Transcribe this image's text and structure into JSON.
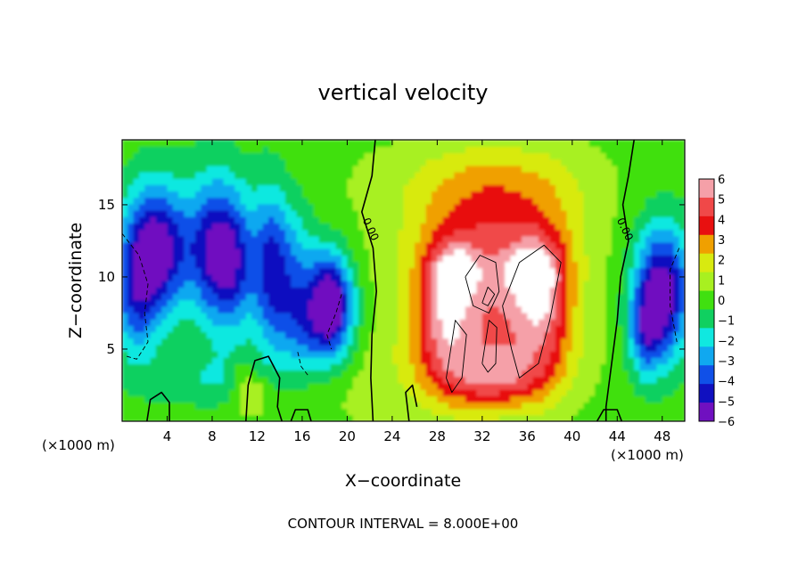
{
  "chart_data": {
    "type": "heatmap",
    "title": "vertical velocity",
    "xlabel": "X−coordinate",
    "ylabel": "Z−coordinate",
    "x_unit_left": "(×1000 m)",
    "x_unit_right": "(×1000 m)",
    "footer": "CONTOUR INTERVAL = 8.000E+00",
    "xlim": [
      0,
      50
    ],
    "ylim": [
      0,
      19.5
    ],
    "x_ticks": [
      {
        "value": 4,
        "label": "4"
      },
      {
        "value": 8,
        "label": "8"
      },
      {
        "value": 12,
        "label": "12"
      },
      {
        "value": 16,
        "label": "16"
      },
      {
        "value": 20,
        "label": "20"
      },
      {
        "value": 24,
        "label": "24"
      },
      {
        "value": 28,
        "label": "28"
      },
      {
        "value": 32,
        "label": "32"
      },
      {
        "value": 36,
        "label": "36"
      },
      {
        "value": 40,
        "label": "40"
      },
      {
        "value": 44,
        "label": "44"
      },
      {
        "value": 48,
        "label": "48"
      }
    ],
    "y_ticks": [
      {
        "value": 5,
        "label": "5"
      },
      {
        "value": 10,
        "label": "10"
      },
      {
        "value": 15,
        "label": "15"
      }
    ],
    "colorbar": {
      "levels": [
        {
          "value": 6,
          "label": "6",
          "color": "#f5a0a8"
        },
        {
          "value": 5,
          "label": "5",
          "color": "#f04848"
        },
        {
          "value": 4,
          "label": "4",
          "color": "#e81010"
        },
        {
          "value": 3,
          "label": "3",
          "color": "#f0a000"
        },
        {
          "value": 2,
          "label": "2",
          "color": "#d8ea10"
        },
        {
          "value": 1,
          "label": "1",
          "color": "#a8f020"
        },
        {
          "value": 0,
          "label": "0",
          "color": "#40e010"
        },
        {
          "value": -1,
          "label": "−1",
          "color": "#10d060"
        },
        {
          "value": -2,
          "label": "−2",
          "color": "#10e8e0"
        },
        {
          "value": -3,
          "label": "−3",
          "color": "#10a8f0"
        },
        {
          "value": -4,
          "label": "−4",
          "color": "#1050e8"
        },
        {
          "value": -5,
          "label": "−5",
          "color": "#1010c0"
        },
        {
          "value": -6,
          "label": "−6",
          "color": "#7010c0"
        }
      ]
    },
    "contour_labels": [
      {
        "text": "0.00",
        "x": 21.8,
        "y": 13.2
      },
      {
        "text": "0.00",
        "x": 44.4,
        "y": 13.2
      }
    ],
    "fields": [
      {
        "x": 25,
        "y": 3,
        "sx": 14,
        "sy": 4,
        "v": 0.8
      },
      {
        "x": 20,
        "y": 11,
        "sx": 6,
        "sy": 9,
        "v": 0.3
      },
      {
        "x": 33,
        "y": 17,
        "sx": 9,
        "sy": 3,
        "v": 1.8
      },
      {
        "x": 33,
        "y": 13,
        "sx": 7.5,
        "sy": 4,
        "v": 3.2
      },
      {
        "x": 33,
        "y": 7,
        "sx": 6.5,
        "sy": 5,
        "v": 4.5
      },
      {
        "x": 28.5,
        "y": 7,
        "sx": 2.5,
        "sy": 4.5,
        "v": 3
      },
      {
        "x": 37.5,
        "y": 8,
        "sx": 2.5,
        "sy": 5,
        "v": 3
      },
      {
        "x": 29.5,
        "y": 10.5,
        "sx": 2.5,
        "sy": 2,
        "v": 2.5
      },
      {
        "x": 36.5,
        "y": 10.5,
        "sx": 2.5,
        "sy": 2,
        "v": 2.5
      },
      {
        "x": 33,
        "y": 3,
        "sx": 4.5,
        "sy": 2,
        "v": 3
      },
      {
        "x": 3,
        "y": 12,
        "sx": 3,
        "sy": 4.5,
        "v": -6.5
      },
      {
        "x": 1.2,
        "y": 8,
        "sx": 2,
        "sy": 4,
        "v": -3
      },
      {
        "x": 8,
        "y": 12,
        "sx": 2.2,
        "sy": 5,
        "v": -4.5
      },
      {
        "x": 10,
        "y": 11,
        "sx": 2,
        "sy": 5,
        "v": -4
      },
      {
        "x": 13,
        "y": 11,
        "sx": 1.5,
        "sy": 5.5,
        "v": -3.5
      },
      {
        "x": 15,
        "y": 10,
        "sx": 2,
        "sy": 5,
        "v": -3.5
      },
      {
        "x": 18.5,
        "y": 8.5,
        "sx": 2,
        "sy": 3.5,
        "v": -6.5
      },
      {
        "x": 17,
        "y": 6,
        "sx": 3.5,
        "sy": 3,
        "v": -2.5
      },
      {
        "x": 48,
        "y": 9,
        "sx": 2.5,
        "sy": 4.5,
        "v": -6.5
      },
      {
        "x": 46.5,
        "y": 6,
        "sx": 1.5,
        "sy": 3,
        "v": -3
      },
      {
        "x": 8,
        "y": 3,
        "sx": 6,
        "sy": 2,
        "v": -1.5
      },
      {
        "x": 11.5,
        "y": 2,
        "sx": 1.5,
        "sy": 1.5,
        "v": 2
      },
      {
        "x": 10.5,
        "y": 3.5,
        "sx": 1,
        "sy": 1,
        "v": 1
      }
    ],
    "contours": [
      {
        "style": "solid",
        "width": 1.6,
        "points": [
          [
            22.5,
            19.5
          ],
          [
            22.2,
            17
          ],
          [
            21.3,
            14.5
          ],
          [
            22.3,
            12
          ],
          [
            22.6,
            9
          ],
          [
            22.2,
            6
          ],
          [
            22.1,
            3
          ],
          [
            22.3,
            0
          ]
        ]
      },
      {
        "style": "solid",
        "width": 1.6,
        "points": [
          [
            45.5,
            19.5
          ],
          [
            45,
            17
          ],
          [
            44.5,
            15
          ],
          [
            45,
            12.5
          ],
          [
            44.3,
            10
          ],
          [
            44,
            7
          ],
          [
            43.5,
            4
          ],
          [
            43,
            1
          ],
          [
            43,
            0
          ]
        ]
      },
      {
        "style": "solid",
        "width": 1.6,
        "points": [
          [
            11,
            0
          ],
          [
            11.2,
            2.5
          ],
          [
            11.8,
            4.2
          ],
          [
            13,
            4.5
          ],
          [
            14,
            3
          ],
          [
            13.8,
            1
          ],
          [
            14.2,
            0
          ]
        ]
      },
      {
        "style": "solid",
        "width": 1.6,
        "points": [
          [
            2.2,
            0
          ],
          [
            2.5,
            1.5
          ],
          [
            3.5,
            2
          ],
          [
            4.2,
            1.3
          ],
          [
            4.2,
            0
          ]
        ]
      },
      {
        "style": "solid",
        "width": 1.6,
        "points": [
          [
            15,
            0
          ],
          [
            15.4,
            0.8
          ],
          [
            16.5,
            0.8
          ],
          [
            16.8,
            0
          ]
        ]
      },
      {
        "style": "solid",
        "width": 1.6,
        "points": [
          [
            42.2,
            0
          ],
          [
            42.8,
            0.8
          ],
          [
            44,
            0.8
          ],
          [
            44.4,
            0
          ]
        ]
      },
      {
        "style": "solid",
        "width": 1.6,
        "points": [
          [
            25.5,
            0
          ],
          [
            25.2,
            2
          ],
          [
            25.8,
            2.5
          ],
          [
            26.2,
            1
          ]
        ]
      },
      {
        "style": "solid",
        "width": 0.9,
        "points": [
          [
            30.5,
            10
          ],
          [
            31.8,
            11.5
          ],
          [
            33.2,
            11
          ],
          [
            33.5,
            9
          ],
          [
            32.6,
            7.5
          ],
          [
            31.2,
            8
          ],
          [
            30.5,
            10
          ]
        ]
      },
      {
        "style": "solid",
        "width": 0.9,
        "points": [
          [
            33.8,
            8
          ],
          [
            35.3,
            11
          ],
          [
            37.5,
            12.2
          ],
          [
            39,
            11
          ],
          [
            38,
            7
          ],
          [
            37,
            4
          ],
          [
            35.3,
            3
          ],
          [
            34.6,
            5
          ],
          [
            33.8,
            8
          ]
        ]
      },
      {
        "style": "solid",
        "width": 0.9,
        "points": [
          [
            28.8,
            3
          ],
          [
            29.6,
            7
          ],
          [
            30.6,
            6
          ],
          [
            30.2,
            3
          ],
          [
            29.3,
            2
          ],
          [
            28.8,
            3
          ]
        ]
      },
      {
        "style": "solid",
        "width": 0.9,
        "points": [
          [
            32,
            4
          ],
          [
            32.6,
            7
          ],
          [
            33.3,
            6.5
          ],
          [
            33.2,
            4
          ],
          [
            32.5,
            3.4
          ],
          [
            32,
            4
          ]
        ]
      },
      {
        "style": "solid",
        "width": 0.9,
        "points": [
          [
            32,
            8.2
          ],
          [
            32.5,
            9.3
          ],
          [
            33.1,
            8.8
          ],
          [
            32.5,
            8
          ],
          [
            32,
            8.2
          ]
        ]
      },
      {
        "style": "dashed",
        "width": 0.9,
        "points": [
          [
            0,
            13
          ],
          [
            1.5,
            11.5
          ],
          [
            2.3,
            9.5
          ],
          [
            2,
            7.5
          ],
          [
            2.3,
            5.5
          ],
          [
            1.3,
            4.3
          ],
          [
            0.4,
            4.5
          ]
        ]
      },
      {
        "style": "dashed",
        "width": 0.9,
        "points": [
          [
            49.5,
            12
          ],
          [
            48.7,
            10.5
          ],
          [
            48.7,
            8
          ],
          [
            49.3,
            5.5
          ]
        ]
      },
      {
        "style": "dashed",
        "width": 0.9,
        "points": [
          [
            19.5,
            8.8
          ],
          [
            19,
            7.5
          ],
          [
            18.2,
            6
          ],
          [
            18.6,
            5
          ]
        ]
      },
      {
        "style": "dashed",
        "width": 0.9,
        "points": [
          [
            15.6,
            4.8
          ],
          [
            15.9,
            3.8
          ],
          [
            16.5,
            3.2
          ]
        ]
      }
    ]
  }
}
